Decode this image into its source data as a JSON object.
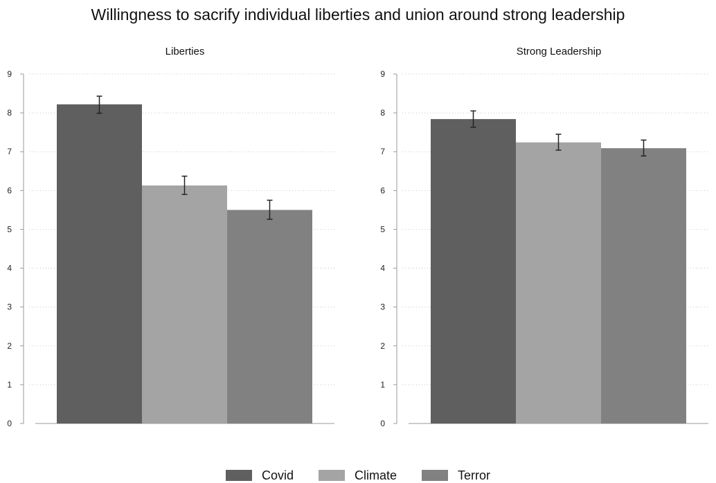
{
  "title": "Willingness to sacrify individual liberties and union around strong leadership",
  "colors": {
    "Covid": "#5f5f5f",
    "Climate": "#a4a4a4",
    "Terror": "#818181",
    "errorbar": "#222222",
    "grid": "#c8c8c8",
    "axis": "#999999"
  },
  "chart_data": [
    {
      "type": "bar",
      "title": "Liberties",
      "categories": [
        "Covid",
        "Climate",
        "Terror"
      ],
      "values": [
        8.22,
        6.13,
        5.5
      ],
      "error_low": [
        7.99,
        5.9,
        5.26
      ],
      "error_high": [
        8.43,
        6.37,
        5.75
      ],
      "ylim": [
        0,
        9
      ],
      "yticks": [
        "0",
        "1",
        "2",
        "3",
        "4",
        "5",
        "6",
        "7",
        "8",
        "9"
      ],
      "grid": "horizontal dotted"
    },
    {
      "type": "bar",
      "title": "Strong Leadership",
      "categories": [
        "Covid",
        "Climate",
        "Terror"
      ],
      "values": [
        7.84,
        7.24,
        7.09
      ],
      "error_low": [
        7.63,
        7.04,
        6.89
      ],
      "error_high": [
        8.05,
        7.45,
        7.3
      ],
      "ylim": [
        0,
        9
      ],
      "yticks": [
        "0",
        "1",
        "2",
        "3",
        "4",
        "5",
        "6",
        "7",
        "8",
        "9"
      ],
      "grid": "horizontal dotted"
    }
  ],
  "legend": {
    "placement": "bottom",
    "items": [
      {
        "label": "Covid",
        "color": "#5f5f5f"
      },
      {
        "label": "Climate",
        "color": "#a4a4a4"
      },
      {
        "label": "Terror",
        "color": "#818181"
      }
    ]
  }
}
